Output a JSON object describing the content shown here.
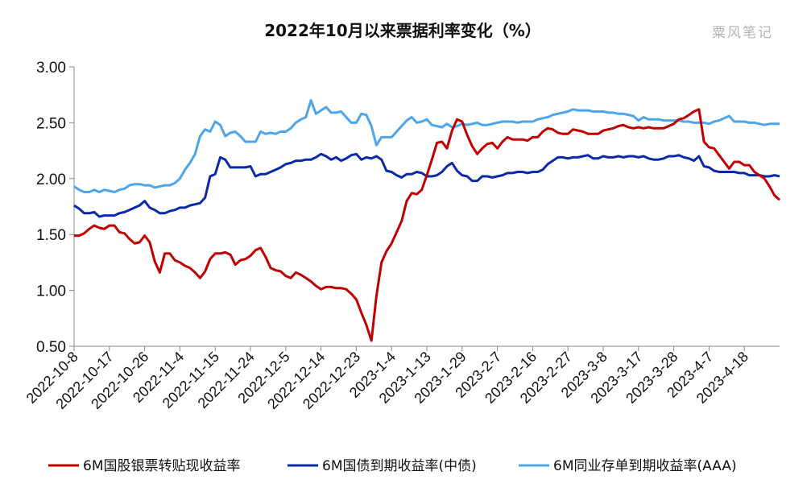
{
  "chart_data": {
    "type": "line",
    "title": "2022年10月以来票据利率变化（%）",
    "watermark": "粟风笔记",
    "xlabel": "",
    "ylabel": "",
    "ylim": [
      0.5,
      3.0
    ],
    "yticks": [
      "3.00",
      "2.50",
      "2.00",
      "1.50",
      "1.00",
      "0.50"
    ],
    "x_tick_labels": [
      "2022-10-8",
      "2022-10-17",
      "2022-10-26",
      "2022-11-4",
      "2022-11-15",
      "2022-11-24",
      "2022-12-5",
      "2022-12-14",
      "2022-12-23",
      "2023-1-4",
      "2023-1-13",
      "2023-1-29",
      "2023-2-7",
      "2023-2-16",
      "2023-2-27",
      "2023-3-8",
      "2023-3-17",
      "2023-3-28",
      "2023-4-7",
      "2023-4-18"
    ],
    "tick_every": 7,
    "grid": false,
    "legend_position": "bottom",
    "series": [
      {
        "name": "6M国股银票转贴现收益率",
        "color": "#c00000",
        "values": [
          1.49,
          1.49,
          1.51,
          1.55,
          1.58,
          1.56,
          1.55,
          1.58,
          1.58,
          1.52,
          1.51,
          1.46,
          1.42,
          1.43,
          1.49,
          1.43,
          1.26,
          1.16,
          1.33,
          1.33,
          1.27,
          1.25,
          1.22,
          1.2,
          1.16,
          1.11,
          1.17,
          1.28,
          1.33,
          1.33,
          1.34,
          1.32,
          1.23,
          1.27,
          1.28,
          1.31,
          1.36,
          1.38,
          1.3,
          1.2,
          1.18,
          1.17,
          1.13,
          1.11,
          1.16,
          1.14,
          1.11,
          1.08,
          1.04,
          1.01,
          1.03,
          1.03,
          1.02,
          1.02,
          1.01,
          0.97,
          0.92,
          0.8,
          0.69,
          0.55,
          0.95,
          1.25,
          1.35,
          1.42,
          1.52,
          1.62,
          1.8,
          1.87,
          1.86,
          1.9,
          2.03,
          2.17,
          2.32,
          2.33,
          2.27,
          2.43,
          2.53,
          2.51,
          2.39,
          2.29,
          2.22,
          2.27,
          2.31,
          2.32,
          2.27,
          2.33,
          2.37,
          2.35,
          2.35,
          2.35,
          2.34,
          2.37,
          2.37,
          2.42,
          2.45,
          2.44,
          2.41,
          2.4,
          2.4,
          2.44,
          2.43,
          2.42,
          2.4,
          2.4,
          2.4,
          2.43,
          2.44,
          2.45,
          2.47,
          2.48,
          2.46,
          2.45,
          2.46,
          2.45,
          2.46,
          2.45,
          2.45,
          2.45,
          2.47,
          2.49,
          2.53,
          2.54,
          2.57,
          2.6,
          2.62,
          2.33,
          2.28,
          2.27,
          2.21,
          2.15,
          2.09,
          2.15,
          2.15,
          2.12,
          2.12,
          2.06,
          2.03,
          2.0,
          1.93,
          1.85,
          1.81
        ]
      },
      {
        "name": "6M国债到期收益率(中债)",
        "color": "#0a2aa8",
        "values": [
          1.76,
          1.73,
          1.69,
          1.69,
          1.7,
          1.66,
          1.67,
          1.67,
          1.67,
          1.69,
          1.7,
          1.72,
          1.74,
          1.76,
          1.8,
          1.74,
          1.72,
          1.69,
          1.69,
          1.71,
          1.72,
          1.74,
          1.74,
          1.76,
          1.77,
          1.78,
          1.83,
          2.02,
          2.04,
          2.19,
          2.17,
          2.1,
          2.1,
          2.1,
          2.1,
          2.11,
          2.02,
          2.04,
          2.04,
          2.06,
          2.08,
          2.1,
          2.13,
          2.14,
          2.16,
          2.16,
          2.17,
          2.17,
          2.19,
          2.22,
          2.2,
          2.17,
          2.19,
          2.16,
          2.18,
          2.21,
          2.22,
          2.17,
          2.19,
          2.18,
          2.2,
          2.17,
          2.07,
          2.06,
          2.03,
          2.01,
          2.04,
          2.04,
          2.06,
          2.05,
          2.02,
          2.02,
          2.03,
          2.06,
          2.11,
          2.14,
          2.07,
          2.03,
          2.02,
          1.98,
          1.98,
          2.02,
          2.02,
          2.01,
          2.02,
          2.03,
          2.05,
          2.05,
          2.06,
          2.06,
          2.05,
          2.06,
          2.06,
          2.08,
          2.13,
          2.16,
          2.19,
          2.19,
          2.18,
          2.19,
          2.19,
          2.2,
          2.21,
          2.18,
          2.18,
          2.2,
          2.19,
          2.19,
          2.2,
          2.19,
          2.2,
          2.2,
          2.19,
          2.2,
          2.18,
          2.17,
          2.17,
          2.18,
          2.2,
          2.2,
          2.21,
          2.19,
          2.18,
          2.16,
          2.2,
          2.11,
          2.1,
          2.07,
          2.06,
          2.06,
          2.06,
          2.06,
          2.05,
          2.05,
          2.03,
          2.03,
          2.03,
          2.02,
          2.02,
          2.03,
          2.02
        ]
      },
      {
        "name": "6M同业存单到期收益率(AAA)",
        "color": "#4ea5ea",
        "values": [
          1.93,
          1.9,
          1.88,
          1.88,
          1.9,
          1.88,
          1.9,
          1.89,
          1.88,
          1.9,
          1.91,
          1.94,
          1.95,
          1.95,
          1.94,
          1.94,
          1.92,
          1.93,
          1.94,
          1.94,
          1.96,
          2.0,
          2.08,
          2.14,
          2.22,
          2.38,
          2.44,
          2.42,
          2.51,
          2.48,
          2.38,
          2.41,
          2.42,
          2.38,
          2.33,
          2.33,
          2.33,
          2.42,
          2.4,
          2.41,
          2.4,
          2.42,
          2.42,
          2.45,
          2.5,
          2.53,
          2.55,
          2.7,
          2.58,
          2.61,
          2.64,
          2.59,
          2.59,
          2.6,
          2.55,
          2.5,
          2.5,
          2.58,
          2.57,
          2.47,
          2.3,
          2.37,
          2.37,
          2.37,
          2.42,
          2.47,
          2.52,
          2.55,
          2.5,
          2.51,
          2.53,
          2.48,
          2.47,
          2.46,
          2.49,
          2.46,
          2.47,
          2.49,
          2.48,
          2.49,
          2.5,
          2.48,
          2.48,
          2.49,
          2.5,
          2.51,
          2.51,
          2.51,
          2.5,
          2.51,
          2.51,
          2.51,
          2.53,
          2.54,
          2.55,
          2.57,
          2.58,
          2.59,
          2.6,
          2.62,
          2.61,
          2.61,
          2.61,
          2.6,
          2.6,
          2.6,
          2.59,
          2.59,
          2.58,
          2.58,
          2.57,
          2.56,
          2.52,
          2.55,
          2.53,
          2.53,
          2.53,
          2.52,
          2.52,
          2.52,
          2.52,
          2.51,
          2.51,
          2.5,
          2.5,
          2.5,
          2.49,
          2.51,
          2.52,
          2.54,
          2.56,
          2.51,
          2.51,
          2.51,
          2.5,
          2.5,
          2.49,
          2.48,
          2.49,
          2.49,
          2.49
        ]
      }
    ]
  }
}
